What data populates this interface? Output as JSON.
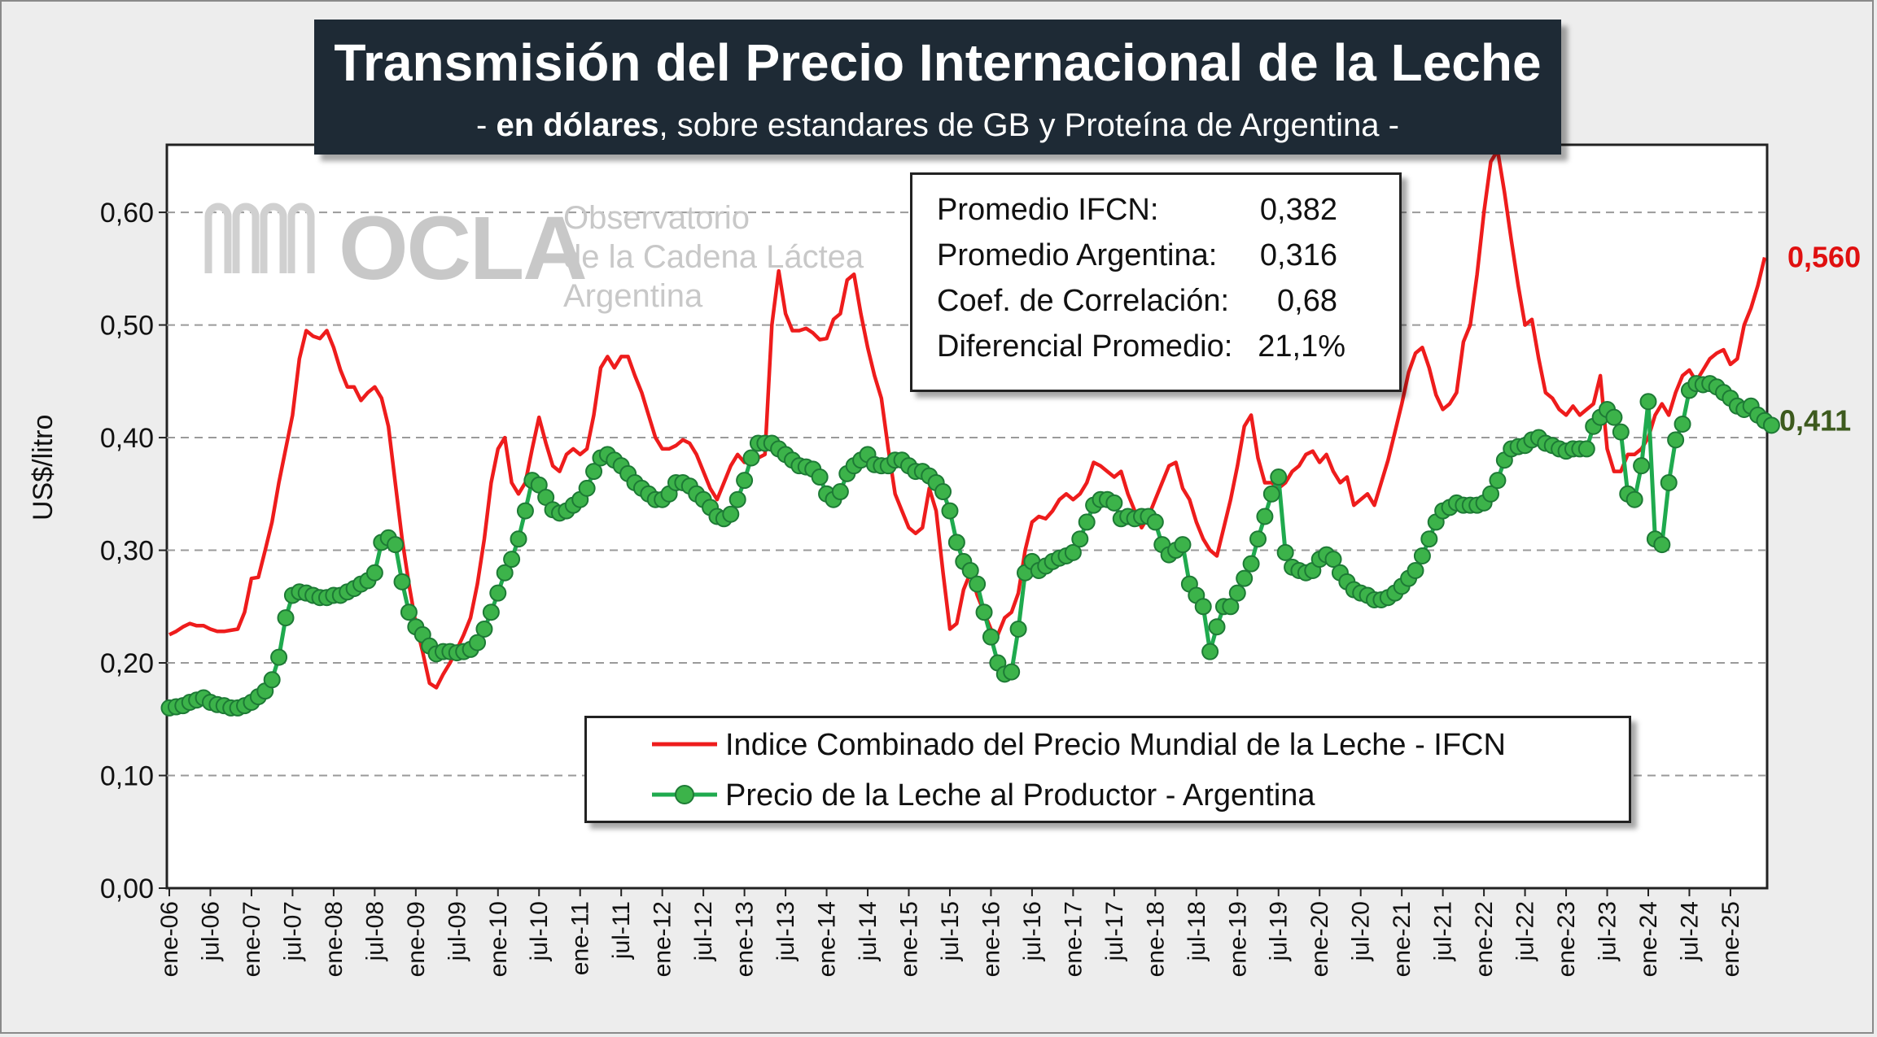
{
  "title": "Transmisión del Precio Internacional de la Leche",
  "subtitle": {
    "prefix": "- ",
    "bold": "en dólares",
    "rest": ", sobre estandares de GB y Proteína de  Argentina -"
  },
  "watermark": {
    "logo": "OCLA",
    "line1": "Observatorio",
    "line2": "de la Cadena Láctea",
    "line3": "Argentina"
  },
  "stats": [
    {
      "label": "Promedio IFCN:",
      "value": "0,382"
    },
    {
      "label": "Promedio Argentina:",
      "value": "0,316"
    },
    {
      "label": "Coef. de Correlación:",
      "value": "0,68"
    },
    {
      "label": "Diferencial Promedio:",
      "value": "21,1%"
    }
  ],
  "legend": [
    {
      "label": "Indice Combinado del Precio Mundial de la Leche - IFCN"
    },
    {
      "label": "Precio de la Leche al Productor - Argentina"
    }
  ],
  "colors": {
    "ifcn": "#ee1c1c",
    "argentina": "#1faa4e",
    "marker": "#3cb34a",
    "marker_stroke": "#1d7a35",
    "last_ifcn": "#e01010",
    "last_arg": "#3d5a1e"
  },
  "chart_data": {
    "type": "line",
    "ylabel": "US$/litro",
    "ylim": [
      0,
      0.66
    ],
    "yticks": [
      "0,00",
      "0,10",
      "0,20",
      "0,30",
      "0,40",
      "0,50",
      "0,60"
    ],
    "grid": true,
    "legend_position": "bottom-center",
    "x_start": "ene-06",
    "x_tick_labels": [
      "ene-06",
      "jul-06",
      "ene-07",
      "jul-07",
      "ene-08",
      "jul-08",
      "ene-09",
      "jul-09",
      "ene-10",
      "jul-10",
      "ene-11",
      "jul-11",
      "ene-12",
      "jul-12",
      "ene-13",
      "jul-13",
      "ene-14",
      "jul-14",
      "ene-15",
      "jul-15",
      "ene-16",
      "jul-16",
      "ene-17",
      "jul-17",
      "ene-18",
      "jul-18",
      "ene-19",
      "jul-19",
      "ene-20",
      "jul-20",
      "ene-21",
      "jul-21",
      "ene-22",
      "jul-22",
      "ene-23",
      "jul-23",
      "ene-24",
      "jul-24",
      "ene-25"
    ],
    "series": [
      {
        "name": "Indice Combinado del Precio Mundial de la Leche - IFCN",
        "last_label": "0,560",
        "values": [
          0.225,
          0.228,
          0.232,
          0.235,
          0.233,
          0.233,
          0.23,
          0.228,
          0.228,
          0.229,
          0.23,
          0.245,
          0.275,
          0.276,
          0.3,
          0.325,
          0.36,
          0.39,
          0.42,
          0.47,
          0.495,
          0.49,
          0.488,
          0.495,
          0.48,
          0.46,
          0.445,
          0.445,
          0.433,
          0.44,
          0.445,
          0.435,
          0.41,
          0.36,
          0.31,
          0.27,
          0.235,
          0.21,
          0.182,
          0.178,
          0.19,
          0.2,
          0.212,
          0.225,
          0.24,
          0.27,
          0.31,
          0.36,
          0.39,
          0.4,
          0.36,
          0.35,
          0.36,
          0.39,
          0.418,
          0.395,
          0.375,
          0.37,
          0.385,
          0.39,
          0.385,
          0.39,
          0.42,
          0.462,
          0.472,
          0.462,
          0.472,
          0.472,
          0.455,
          0.44,
          0.42,
          0.4,
          0.39,
          0.39,
          0.393,
          0.398,
          0.395,
          0.385,
          0.37,
          0.355,
          0.345,
          0.36,
          0.375,
          0.385,
          0.378,
          0.38,
          0.382,
          0.385,
          0.5,
          0.548,
          0.51,
          0.495,
          0.495,
          0.497,
          0.493,
          0.487,
          0.488,
          0.505,
          0.51,
          0.54,
          0.545,
          0.51,
          0.48,
          0.455,
          0.435,
          0.39,
          0.35,
          0.335,
          0.32,
          0.315,
          0.32,
          0.355,
          0.335,
          0.28,
          0.23,
          0.235,
          0.265,
          0.28,
          0.26,
          0.245,
          0.23,
          0.225,
          0.24,
          0.245,
          0.262,
          0.3,
          0.325,
          0.33,
          0.328,
          0.335,
          0.345,
          0.35,
          0.345,
          0.35,
          0.36,
          0.378,
          0.375,
          0.37,
          0.365,
          0.37,
          0.35,
          0.335,
          0.32,
          0.33,
          0.345,
          0.36,
          0.375,
          0.378,
          0.355,
          0.345,
          0.325,
          0.31,
          0.3,
          0.295,
          0.32,
          0.345,
          0.375,
          0.41,
          0.42,
          0.382,
          0.36,
          0.36,
          0.355,
          0.36,
          0.37,
          0.375,
          0.385,
          0.388,
          0.378,
          0.385,
          0.37,
          0.36,
          0.365,
          0.34,
          0.345,
          0.35,
          0.34,
          0.36,
          0.38,
          0.405,
          0.43,
          0.458,
          0.475,
          0.48,
          0.462,
          0.438,
          0.425,
          0.43,
          0.44,
          0.485,
          0.5,
          0.545,
          0.6,
          0.645,
          0.655,
          0.618,
          0.575,
          0.535,
          0.5,
          0.505,
          0.47,
          0.44,
          0.435,
          0.425,
          0.42,
          0.428,
          0.42,
          0.425,
          0.43,
          0.455,
          0.39,
          0.37,
          0.37,
          0.385,
          0.385,
          0.39,
          0.4,
          0.42,
          0.43,
          0.42,
          0.44,
          0.455,
          0.46,
          0.45,
          0.46,
          0.47,
          0.475,
          0.478,
          0.465,
          0.47,
          0.5,
          0.515,
          0.535,
          0.56
        ]
      },
      {
        "name": "Precio de la Leche al Productor - Argentina",
        "last_label": "0,411",
        "values": [
          0.16,
          0.161,
          0.162,
          0.165,
          0.167,
          0.169,
          0.165,
          0.163,
          0.162,
          0.16,
          0.16,
          0.162,
          0.165,
          0.17,
          0.175,
          0.185,
          0.205,
          0.24,
          0.26,
          0.263,
          0.262,
          0.26,
          0.258,
          0.258,
          0.26,
          0.26,
          0.263,
          0.266,
          0.27,
          0.273,
          0.28,
          0.307,
          0.311,
          0.305,
          0.272,
          0.245,
          0.232,
          0.225,
          0.215,
          0.208,
          0.21,
          0.21,
          0.209,
          0.21,
          0.212,
          0.218,
          0.23,
          0.245,
          0.262,
          0.28,
          0.292,
          0.31,
          0.335,
          0.362,
          0.358,
          0.347,
          0.336,
          0.333,
          0.335,
          0.34,
          0.345,
          0.355,
          0.37,
          0.382,
          0.385,
          0.38,
          0.375,
          0.368,
          0.36,
          0.355,
          0.35,
          0.345,
          0.345,
          0.35,
          0.36,
          0.36,
          0.357,
          0.35,
          0.345,
          0.338,
          0.33,
          0.328,
          0.332,
          0.345,
          0.362,
          0.382,
          0.395,
          0.395,
          0.395,
          0.39,
          0.385,
          0.38,
          0.375,
          0.374,
          0.372,
          0.365,
          0.35,
          0.345,
          0.352,
          0.368,
          0.375,
          0.38,
          0.385,
          0.376,
          0.375,
          0.375,
          0.38,
          0.38,
          0.375,
          0.37,
          0.37,
          0.366,
          0.36,
          0.352,
          0.335,
          0.307,
          0.29,
          0.282,
          0.27,
          0.245,
          0.223,
          0.2,
          0.19,
          0.192,
          0.23,
          0.28,
          0.29,
          0.282,
          0.286,
          0.29,
          0.293,
          0.295,
          0.298,
          0.31,
          0.325,
          0.34,
          0.345,
          0.345,
          0.342,
          0.328,
          0.33,
          0.328,
          0.33,
          0.33,
          0.325,
          0.305,
          0.296,
          0.3,
          0.305,
          0.27,
          0.26,
          0.25,
          0.21,
          0.232,
          0.25,
          0.25,
          0.262,
          0.275,
          0.288,
          0.31,
          0.33,
          0.35,
          0.365,
          0.298,
          0.285,
          0.282,
          0.28,
          0.282,
          0.292,
          0.296,
          0.292,
          0.28,
          0.272,
          0.265,
          0.262,
          0.26,
          0.256,
          0.256,
          0.258,
          0.262,
          0.268,
          0.275,
          0.282,
          0.295,
          0.31,
          0.325,
          0.335,
          0.338,
          0.342,
          0.34,
          0.34,
          0.34,
          0.342,
          0.35,
          0.362,
          0.38,
          0.39,
          0.392,
          0.393,
          0.398,
          0.4,
          0.395,
          0.393,
          0.39,
          0.388,
          0.39,
          0.39,
          0.39,
          0.41,
          0.418,
          0.425,
          0.418,
          0.405,
          0.35,
          0.345,
          0.375,
          0.432,
          0.31,
          0.305,
          0.36,
          0.398,
          0.412,
          0.442,
          0.448,
          0.447,
          0.448,
          0.445,
          0.44,
          0.435,
          0.428,
          0.425,
          0.428,
          0.42,
          0.415,
          0.411
        ]
      }
    ]
  }
}
